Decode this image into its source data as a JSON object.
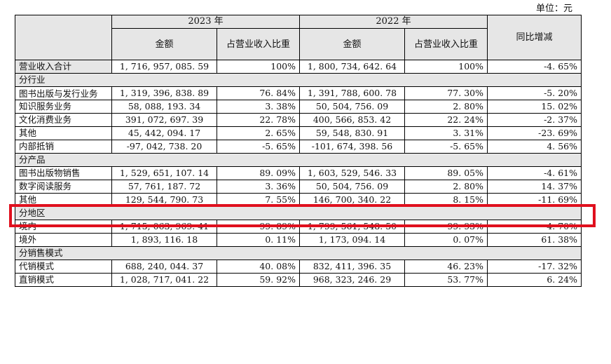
{
  "unit_label": "单位：元",
  "headers": {
    "year_2023": "2023 年",
    "year_2022": "2022 年",
    "amount": "金额",
    "ratio": "占营业收入比重",
    "yoy": "同比增减"
  },
  "total": {
    "label": "营业收入合计",
    "a2023": "1, 716, 957, 085. 59",
    "r2023": "100%",
    "a2022": "1, 800, 734, 642. 64",
    "r2022": "100%",
    "yoy": "-4. 65%"
  },
  "sections": {
    "industry": "分行业",
    "product": "分产品",
    "region": "分地区",
    "sales_mode": "分销售模式"
  },
  "industry_rows": [
    {
      "label": "图书出版与发行业务",
      "a2023": "1, 319, 396, 838. 89",
      "r2023": "76. 84%",
      "a2022": "1, 391, 788, 600. 78",
      "r2022": "77. 30%",
      "yoy": "-5. 20%"
    },
    {
      "label": "知识服务业务",
      "a2023": "58, 088, 193. 34",
      "r2023": "3. 38%",
      "a2022": "50, 504, 756. 09",
      "r2022": "2. 80%",
      "yoy": "15. 02%"
    },
    {
      "label": "文化消费业务",
      "a2023": "391, 072, 697. 39",
      "r2023": "22. 78%",
      "a2022": "400, 566, 853. 42",
      "r2022": "22. 24%",
      "yoy": "-2. 37%"
    },
    {
      "label": "其他",
      "a2023": "45, 442, 094. 17",
      "r2023": "2. 65%",
      "a2022": "59, 548, 830. 91",
      "r2022": "3. 31%",
      "yoy": "-23. 69%"
    },
    {
      "label": "内部抵销",
      "a2023": "-97, 042, 738. 20",
      "r2023": "-5. 65%",
      "a2022": "-101, 674, 398. 56",
      "r2022": "-5. 65%",
      "yoy": "4. 56%"
    }
  ],
  "product_rows": [
    {
      "label": "图书出版物销售",
      "a2023": "1, 529, 651, 107. 14",
      "r2023": "89. 09%",
      "a2022": "1, 603, 529, 546. 33",
      "r2022": "89. 05%",
      "yoy": "-4. 61%"
    },
    {
      "label": "数字阅读服务",
      "a2023": "57, 761, 187. 72",
      "r2023": "3. 36%",
      "a2022": "50, 504, 756. 09",
      "r2022": "2. 80%",
      "yoy": "14. 37%"
    },
    {
      "label": "其他",
      "a2023": "129, 544, 790. 73",
      "r2023": "7. 55%",
      "a2022": "146, 700, 340. 22",
      "r2022": "8. 15%",
      "yoy": "-11. 69%"
    }
  ],
  "region_rows": [
    {
      "label": "境内",
      "a2023": "1, 715, 063, 969. 41",
      "r2023": "99. 89%",
      "a2022": "1, 799, 561, 548. 50",
      "r2022": "99. 93%",
      "yoy": "-4. 70%"
    },
    {
      "label": "境外",
      "a2023": "1, 893, 116. 18",
      "r2023": "0. 11%",
      "a2022": "1, 173, 094. 14",
      "r2022": "0. 07%",
      "yoy": "61. 38%"
    }
  ],
  "sales_mode_rows": [
    {
      "label": "代销模式",
      "a2023": "688, 240, 044. 37",
      "r2023": "40. 08%",
      "a2022": "832, 411, 396. 35",
      "r2022": "46. 23%",
      "yoy": "-17. 32%"
    },
    {
      "label": "直销模式",
      "a2023": "1, 028, 717, 041. 22",
      "r2023": "59. 92%",
      "a2022": "968, 323, 246. 29",
      "r2022": "53. 77%",
      "yoy": "6. 24%"
    }
  ],
  "highlight_color": "#e0101e"
}
